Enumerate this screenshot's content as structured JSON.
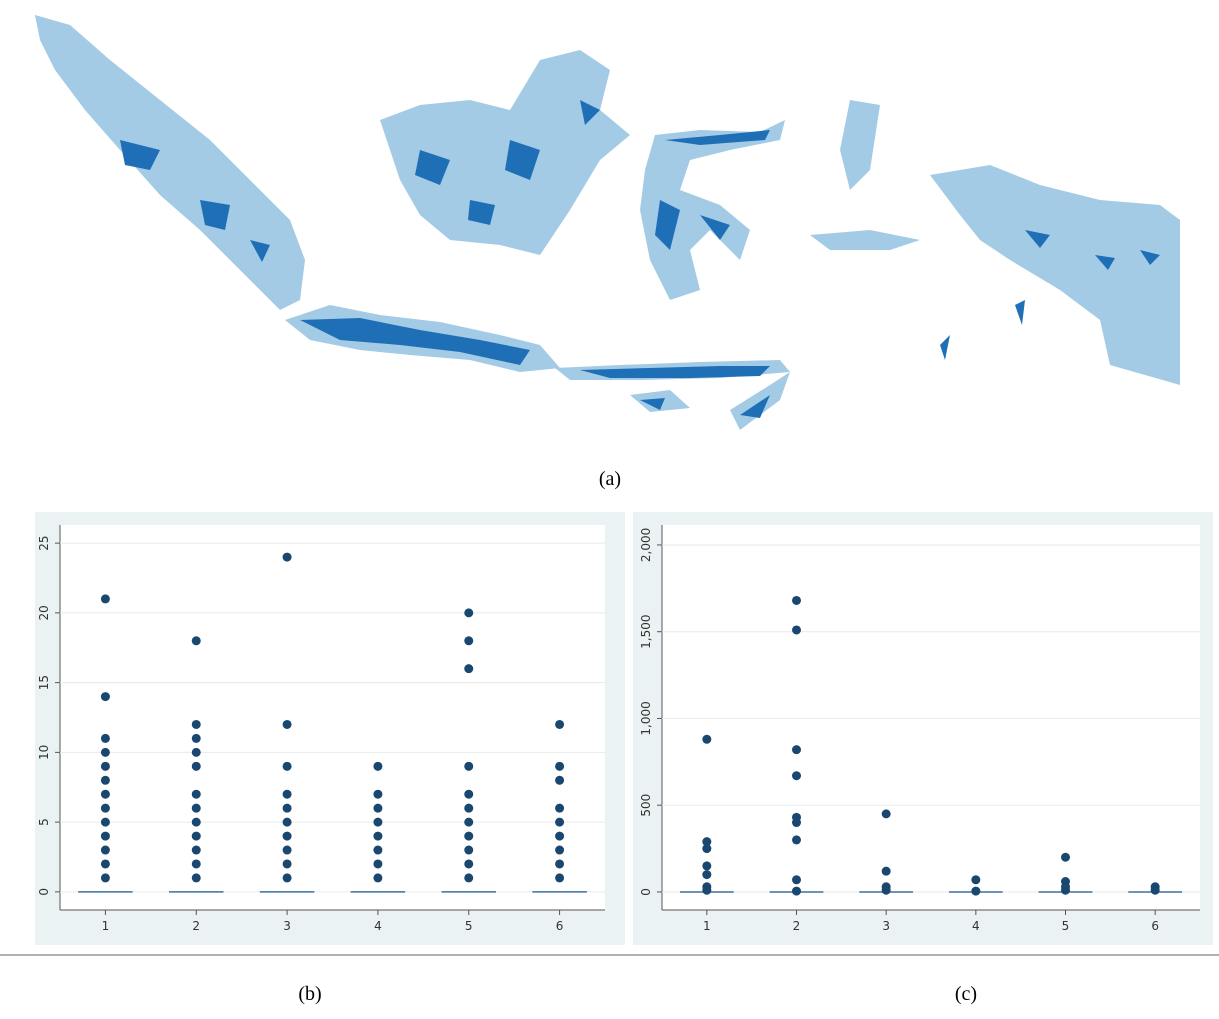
{
  "map_caption": "(a)",
  "chart_data": [
    {
      "type": "box",
      "caption": "(b)",
      "categories": [
        "1",
        "2",
        "3",
        "4",
        "5",
        "6"
      ],
      "medians": [
        0,
        0,
        0,
        0,
        0,
        0
      ],
      "outliers": [
        [
          1,
          2,
          3,
          4,
          5,
          6,
          7,
          8,
          9,
          10,
          11,
          14,
          21
        ],
        [
          1,
          2,
          3,
          4,
          5,
          6,
          7,
          9,
          10,
          11,
          12,
          18
        ],
        [
          1,
          2,
          3,
          4,
          5,
          6,
          7,
          9,
          12,
          24
        ],
        [
          1,
          2,
          3,
          4,
          5,
          6,
          7,
          9
        ],
        [
          1,
          2,
          3,
          4,
          5,
          6,
          7,
          9,
          16,
          18,
          20
        ],
        [
          1,
          2,
          3,
          4,
          5,
          6,
          8,
          9,
          12
        ]
      ],
      "color": "#1a476f",
      "median_color": "#3e6fa0",
      "ylim": [
        -1.3,
        26.3
      ],
      "yticks": [
        0,
        5,
        10,
        15,
        20,
        25
      ],
      "grid": true
    },
    {
      "type": "box",
      "caption": "(c)",
      "categories": [
        "1",
        "2",
        "3",
        "4",
        "5",
        "6"
      ],
      "medians": [
        0,
        0,
        0,
        0,
        0,
        0
      ],
      "outliers": [
        [
          10,
          30,
          100,
          150,
          250,
          290,
          880
        ],
        [
          5,
          70,
          300,
          400,
          430,
          670,
          820,
          1510,
          1680
        ],
        [
          10,
          30,
          120,
          450
        ],
        [
          5,
          70
        ],
        [
          10,
          30,
          60,
          200
        ],
        [
          10,
          30
        ]
      ],
      "color": "#1a476f",
      "median_color": "#3e6fa0",
      "ylim": [
        -104,
        2115
      ],
      "yticks": [
        0,
        500,
        {
          "value": 1000,
          "label": "1,000"
        },
        {
          "value": 1500,
          "label": "1,500"
        },
        {
          "value": 2000,
          "label": "2,000"
        }
      ],
      "grid": true
    }
  ]
}
